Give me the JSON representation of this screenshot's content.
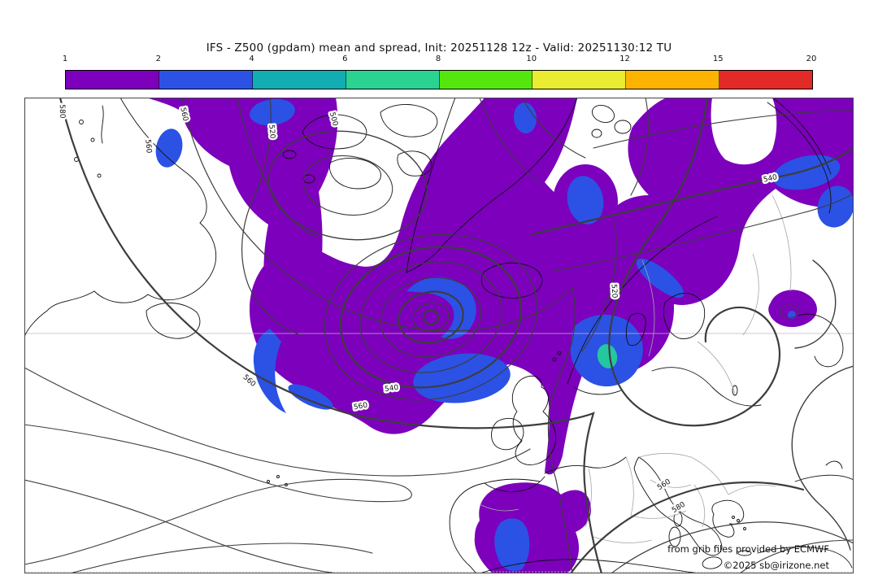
{
  "title": "IFS - Z500 (gpdam) mean and spread, Init: 20251128 12z - Valid: 20251130:12 TU",
  "colorbar": {
    "tick_labels": [
      "1",
      "2",
      "4",
      "6",
      "8",
      "10",
      "12",
      "15",
      "20"
    ],
    "segment_colors": [
      "#7C00BC",
      "#2B52E5",
      "#12ADB2",
      "#2AD391",
      "#55E70D",
      "#E9EC30",
      "#FFB301",
      "#E22A26"
    ]
  },
  "map": {
    "shade_colors": {
      "spread_1_2": "#7C00BC",
      "spread_2_4": "#2B52E5",
      "spread_4_6": "#25C79E"
    },
    "contour_labels": [
      {
        "text": "580"
      },
      {
        "text": "560"
      },
      {
        "text": "560"
      },
      {
        "text": "520"
      },
      {
        "text": "500"
      },
      {
        "text": "540"
      },
      {
        "text": "560"
      },
      {
        "text": "540"
      },
      {
        "text": "520"
      },
      {
        "text": "560"
      },
      {
        "text": "580"
      },
      {
        "text": "560"
      }
    ]
  },
  "attribution": {
    "line1": "from grib files provided by ECMWF",
    "line2": "©2025 sb@irizone.net"
  },
  "chart_data": {
    "type": "heatmap",
    "title": "IFS - Z500 (gpdam) mean and spread, Init: 20251128 12z - Valid: 20251130:12 TU",
    "field": "Z500 ensemble mean contours (gpdam) with ensemble spread shading",
    "contour_levels_gpdam": [
      500,
      520,
      540,
      560,
      580
    ],
    "spread_scale_levels": [
      1,
      2,
      4,
      6,
      8,
      10,
      12,
      15,
      20
    ],
    "spread_scale_colors": [
      "#7C00BC",
      "#2B52E5",
      "#12ADB2",
      "#2AD391",
      "#55E70D",
      "#E9EC30",
      "#FFB301",
      "#E22A26"
    ],
    "legend_position": "top",
    "region": "North Atlantic / Europe"
  }
}
